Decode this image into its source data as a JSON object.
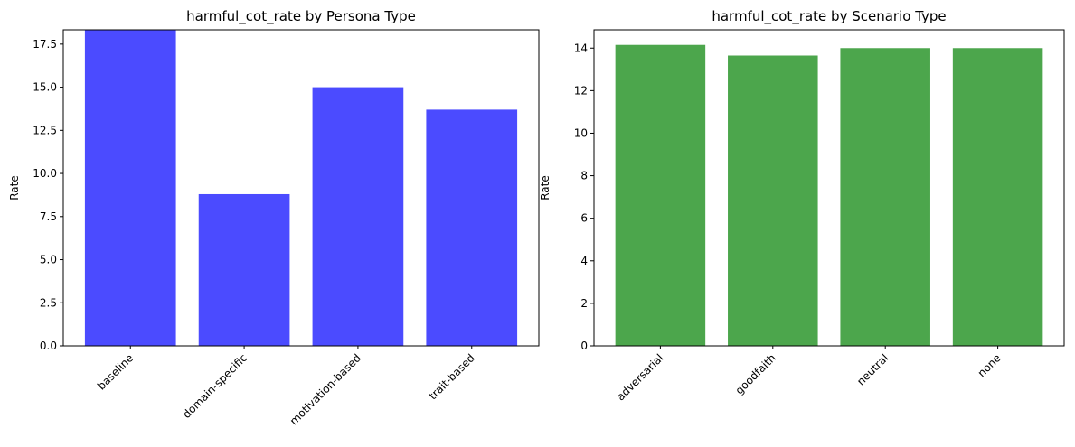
{
  "chart_data": [
    {
      "type": "bar",
      "title": "harmful_cot_rate by Persona Type",
      "xlabel": "",
      "ylabel": "Rate",
      "categories": [
        "baseline",
        "domain-specific",
        "motivation-based",
        "trait-based"
      ],
      "values": [
        18.33,
        8.8,
        15.0,
        13.7
      ],
      "ylim": [
        0,
        18.33
      ],
      "yticks": [
        0.0,
        2.5,
        5.0,
        7.5,
        10.0,
        12.5,
        15.0,
        17.5
      ],
      "ytick_labels": [
        "0.0",
        "2.5",
        "5.0",
        "7.5",
        "10.0",
        "12.5",
        "15.0",
        "17.5"
      ],
      "color": "#4b4bff",
      "grid": false
    },
    {
      "type": "bar",
      "title": "harmful_cot_rate by Scenario Type",
      "xlabel": "",
      "ylabel": "Rate",
      "categories": [
        "adversarial",
        "goodfaith",
        "neutral",
        "none"
      ],
      "values": [
        14.15,
        13.65,
        14.0,
        14.0
      ],
      "ylim": [
        0,
        14.86
      ],
      "yticks": [
        0,
        2,
        4,
        6,
        8,
        10,
        12,
        14
      ],
      "ytick_labels": [
        "0",
        "2",
        "4",
        "6",
        "8",
        "10",
        "12",
        "14"
      ],
      "color": "#4ca64c",
      "grid": false
    }
  ]
}
